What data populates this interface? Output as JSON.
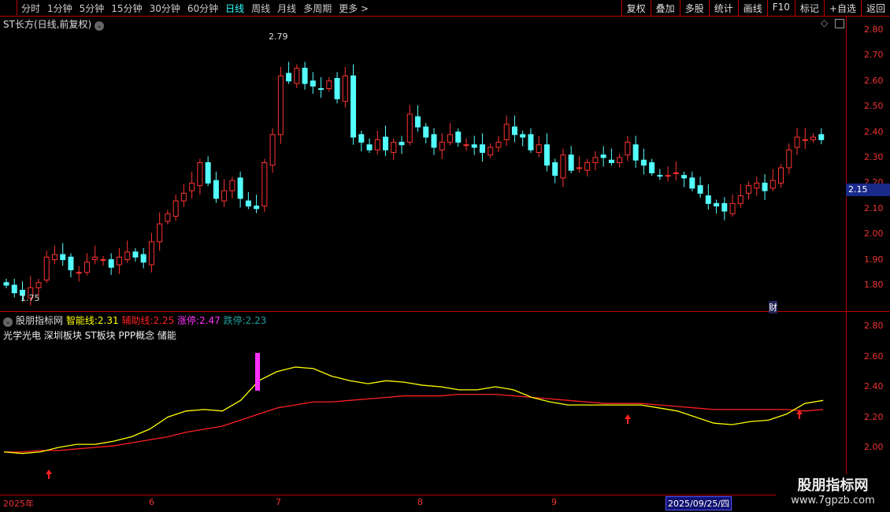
{
  "toolbar": {
    "periods": [
      "分时",
      "1分钟",
      "5分钟",
      "15分钟",
      "30分钟",
      "60分钟",
      "日线",
      "周线",
      "月线",
      "多周期",
      "更多 >"
    ],
    "active": "日线",
    "right": [
      "复权",
      "叠加",
      "多股",
      "统计",
      "画线",
      "F10",
      "标记",
      "+自选",
      "返回"
    ]
  },
  "stock": {
    "title": "ST长方(日线,前复权)",
    "high_label": "2.79",
    "low_label": "1.75",
    "current_price": "2.15",
    "marker_cai": "财"
  },
  "price_axis": [
    "2.80",
    "2.70",
    "2.60",
    "2.50",
    "2.40",
    "2.30",
    "2.20",
    "2.10",
    "2.00",
    "1.90",
    "1.80"
  ],
  "indicator": {
    "name": "股朋指标网",
    "items": [
      {
        "label": "智能线:",
        "value": "2.31",
        "color": "#ffff00"
      },
      {
        "label": "辅助线:",
        "value": "2.25",
        "color": "#ff2020"
      },
      {
        "label": "涨停:",
        "value": "2.47",
        "color": "#ff30ff"
      },
      {
        "label": "跌停:",
        "value": "2.23",
        "color": "#20a0a0"
      }
    ],
    "tags": "光学光电  深圳板块  ST板块 PPP概念 储能",
    "axis": [
      "2.80",
      "2.60",
      "2.40",
      "2.20",
      "2.00"
    ]
  },
  "dates": [
    "2025年",
    "6",
    "7",
    "8",
    "9"
  ],
  "cursor_date": "2025/09/25/四",
  "watermark": {
    "name": "股朋指标网",
    "url": "www.7gpzb.com"
  },
  "colors": {
    "up": "#ff3232",
    "down": "#54ffff",
    "smart_line": "#ffff00",
    "aux_line": "#ff2020",
    "bar": "#ff30ff"
  },
  "chart_data": {
    "type": "candlestick",
    "ylim": [
      1.72,
      2.84
    ],
    "closes": [
      1.8,
      1.77,
      1.76,
      1.79,
      1.81,
      1.91,
      1.92,
      1.9,
      1.86,
      1.85,
      1.89,
      1.91,
      1.9,
      1.87,
      1.91,
      1.93,
      1.91,
      1.89,
      1.97,
      2.04,
      2.08,
      2.13,
      2.16,
      2.2,
      2.28,
      2.2,
      2.14,
      2.17,
      2.21,
      2.14,
      2.11,
      2.1,
      2.28,
      2.39,
      2.62,
      2.6,
      2.65,
      2.59,
      2.58,
      2.57,
      2.6,
      2.53,
      2.62,
      2.38,
      2.36,
      2.33,
      2.37,
      2.33,
      2.36,
      2.35,
      2.47,
      2.42,
      2.38,
      2.34,
      2.36,
      2.39,
      2.36,
      2.35,
      2.34,
      2.32,
      2.34,
      2.36,
      2.43,
      2.39,
      2.38,
      2.33,
      2.35,
      2.27,
      2.23,
      2.31,
      2.25,
      2.26,
      2.28,
      2.3,
      2.3,
      2.28,
      2.3,
      2.36,
      2.29,
      2.27,
      2.24,
      2.23,
      2.23,
      2.24,
      2.22,
      2.18,
      2.16,
      2.12,
      2.11,
      2.09,
      2.12,
      2.15,
      2.19,
      2.2,
      2.17,
      2.21,
      2.26,
      2.33,
      2.38,
      2.37,
      2.38,
      2.37
    ]
  },
  "lines": {
    "smart": [
      1.97,
      1.96,
      1.97,
      2.0,
      2.02,
      2.02,
      2.04,
      2.07,
      2.12,
      2.2,
      2.24,
      2.25,
      2.24,
      2.31,
      2.44,
      2.5,
      2.53,
      2.52,
      2.47,
      2.44,
      2.42,
      2.44,
      2.43,
      2.41,
      2.4,
      2.38,
      2.38,
      2.4,
      2.38,
      2.33,
      2.3,
      2.28,
      2.28,
      2.28,
      2.28,
      2.28,
      2.26,
      2.24,
      2.2,
      2.16,
      2.15,
      2.17,
      2.18,
      2.22,
      2.29,
      2.31
    ],
    "aux": [
      1.97,
      1.97,
      1.98,
      1.98,
      1.99,
      2.0,
      2.01,
      2.03,
      2.05,
      2.07,
      2.1,
      2.12,
      2.14,
      2.18,
      2.22,
      2.26,
      2.28,
      2.3,
      2.3,
      2.31,
      2.32,
      2.33,
      2.34,
      2.34,
      2.34,
      2.35,
      2.35,
      2.35,
      2.34,
      2.33,
      2.32,
      2.31,
      2.3,
      2.29,
      2.29,
      2.29,
      2.28,
      2.27,
      2.26,
      2.25,
      2.25,
      2.25,
      2.25,
      2.25,
      2.24,
      2.25
    ]
  }
}
